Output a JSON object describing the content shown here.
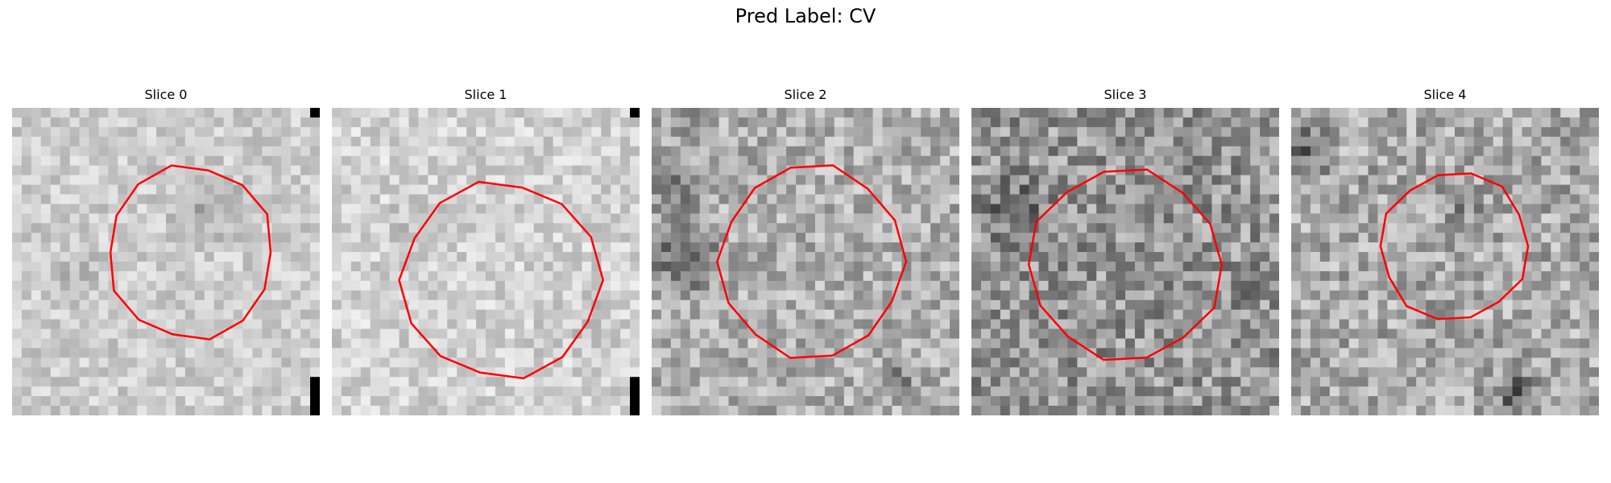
{
  "figure": {
    "title": "Pred Label: CV"
  },
  "panels": [
    {
      "title": "Slice 0"
    },
    {
      "title": "Slice 1"
    },
    {
      "title": "Slice 2"
    },
    {
      "title": "Slice 3"
    },
    {
      "title": "Slice 4"
    }
  ],
  "colors": {
    "contour": "#ff0000",
    "colormap": "gray"
  }
}
